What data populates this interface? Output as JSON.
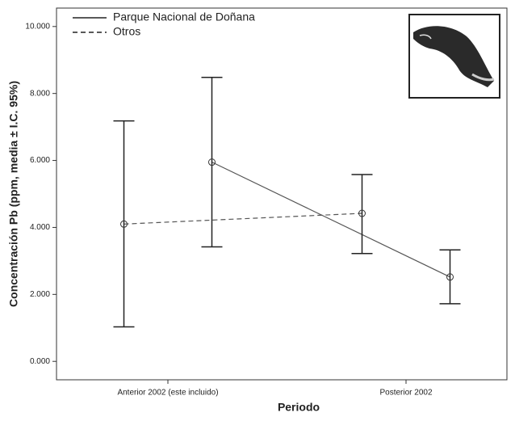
{
  "chart_data": {
    "type": "line",
    "categories": [
      "Anterior 2002 (este incluido)",
      "Posterior 2002"
    ],
    "series": [
      {
        "name": "Parque Nacional de Doñana",
        "color": "#555555",
        "dash": "solid",
        "values": [
          5.95,
          2.52
        ],
        "ci_low": [
          3.42,
          1.72
        ],
        "ci_high": [
          8.48,
          3.33
        ]
      },
      {
        "name": "Otros",
        "color": "#555555",
        "dash": "dashed",
        "values": [
          4.1,
          4.42
        ],
        "ci_low": [
          1.03,
          3.22
        ],
        "ci_high": [
          7.18,
          5.58
        ]
      }
    ],
    "ylim": [
      -0.55,
      10.55
    ],
    "yticks": [
      {
        "value": 0,
        "label": "0.000"
      },
      {
        "value": 2,
        "label": "2.000"
      },
      {
        "value": 4,
        "label": "4.000"
      },
      {
        "value": 6,
        "label": "6.000"
      },
      {
        "value": 8,
        "label": "8.000"
      },
      {
        "value": 10,
        "label": "10.000"
      }
    ],
    "y_label": "Concentración Pb (ppm, media ± I.C. 95%)",
    "x_label": "Periodo",
    "legend": "upper left",
    "grid": false
  }
}
